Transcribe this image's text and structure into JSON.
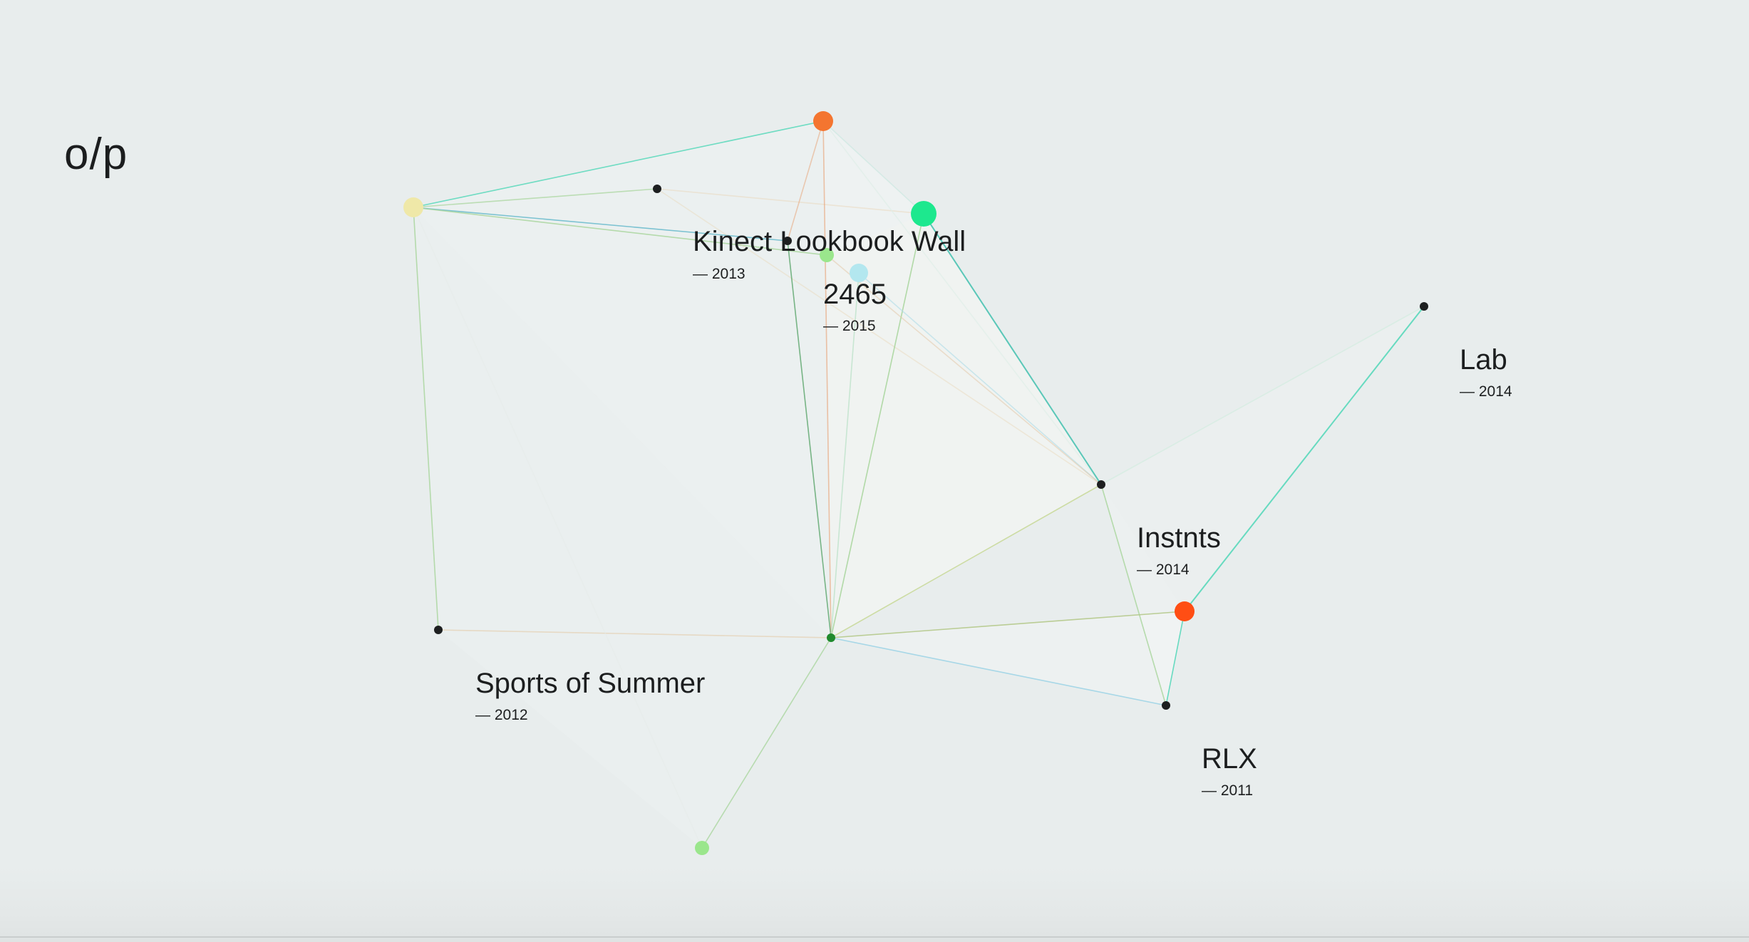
{
  "site": {
    "logo": "o/p"
  },
  "projects": [
    {
      "id": "kinect",
      "title": "Kinect Lookbook Wall",
      "year": "— 2013"
    },
    {
      "id": "p2465",
      "title": "2465",
      "year": "— 2015"
    },
    {
      "id": "lab",
      "title": "Lab",
      "year": "— 2014"
    },
    {
      "id": "instnts",
      "title": "Instnts",
      "year": "— 2014"
    },
    {
      "id": "sports",
      "title": "Sports of Summer",
      "year": "— 2012"
    },
    {
      "id": "rlx",
      "title": "RLX",
      "year": "— 2011"
    }
  ],
  "colors": {
    "background": "#e8eded",
    "text": "#1c1e1f",
    "node_dark": "#1d1f20",
    "node_orange": "#f47530",
    "node_red_orange": "#ff4e14",
    "node_bright_green": "#1de88e",
    "node_light_green": "#9ae68c",
    "node_cyan": "#b3e7ef",
    "node_pale_yellow": "#efe8a8",
    "node_center_green": "#1f8a2e",
    "edge_teal": "#5fd9bd",
    "edge_green": "#a6d49a",
    "edge_orange": "#e8a57a",
    "edge_blue": "#9fd4e6"
  }
}
